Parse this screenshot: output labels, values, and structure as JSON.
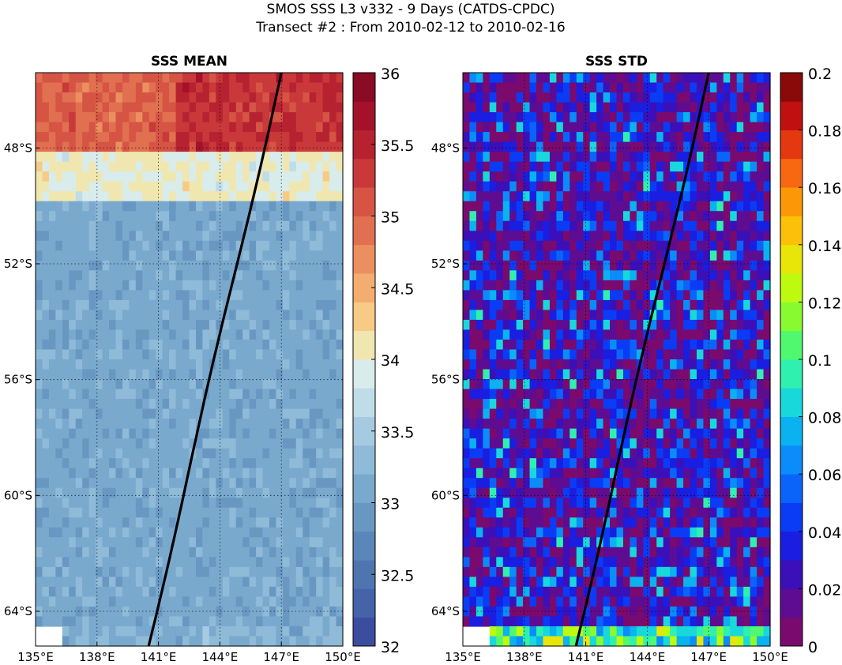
{
  "title_line1": "SMOS SSS L3 v332 - 9 Days (CATDS-CPDC)",
  "title_line2": "Transect #2 : From 2010-02-12 to 2010-02-16",
  "chart_data": [
    {
      "type": "heatmap",
      "title": "SSS MEAN",
      "x_ticks": [
        "135°E",
        "138°E",
        "141°E",
        "144°E",
        "147°E",
        "150°E"
      ],
      "x_tick_values": [
        135,
        138,
        141,
        144,
        147,
        150
      ],
      "y_ticks": [
        "48°S",
        "52°S",
        "56°S",
        "60°S",
        "64°S"
      ],
      "y_tick_values": [
        -48,
        -52,
        -56,
        -60,
        -64
      ],
      "xlim": [
        135,
        150
      ],
      "ylim": [
        -65.2,
        -45.4
      ],
      "grid": true,
      "colorbar": {
        "ticks": [
          "32",
          "32.5",
          "33",
          "33.5",
          "34",
          "34.5",
          "35",
          "35.5",
          "36"
        ],
        "range": [
          32,
          36
        ],
        "levels": 20,
        "colormap": "RdYlBu_r",
        "colors": [
          "#3b4d9e",
          "#4563a8",
          "#4f75b1",
          "#5b86ba",
          "#6898c2",
          "#79a9cd",
          "#8fbad8",
          "#a6cbe1",
          "#bfdde8",
          "#d8ecec",
          "#f0e6b0",
          "#f7cb86",
          "#f4ad70",
          "#ec8f5f",
          "#e07050",
          "#d65444",
          "#c9393a",
          "#b72231",
          "#a3122a",
          "#8a0b24"
        ]
      },
      "band_means_north_to_south": [
        {
          "lat_from": -45.4,
          "lat_to": -48.2,
          "sss": 35.0
        },
        {
          "lat_from": -48.2,
          "lat_to": -50.0,
          "sss": 34.0
        },
        {
          "lat_from": -50.0,
          "lat_to": -64.5,
          "sss": 33.1
        },
        {
          "lat_from": -64.5,
          "lat_to": -65.2,
          "sss": 33.2
        }
      ],
      "transect_line": {
        "lon": [
          147.0,
          140.5
        ],
        "lat": [
          -45.4,
          -65.2
        ],
        "color": "#000000"
      }
    },
    {
      "type": "heatmap",
      "title": "SSS STD",
      "x_ticks": [
        "135°E",
        "138°E",
        "141°E",
        "144°E",
        "147°E",
        "150°E"
      ],
      "x_tick_values": [
        135,
        138,
        141,
        144,
        147,
        150
      ],
      "y_ticks": [
        "48°S",
        "52°S",
        "56°S",
        "60°S",
        "64°S"
      ],
      "y_tick_values": [
        -48,
        -52,
        -56,
        -60,
        -64
      ],
      "xlim": [
        135,
        150
      ],
      "ylim": [
        -65.2,
        -45.4
      ],
      "grid": true,
      "colorbar": {
        "ticks": [
          "0",
          "0.02",
          "0.04",
          "0.06",
          "0.08",
          "0.1",
          "0.12",
          "0.14",
          "0.16",
          "0.18",
          "0.2"
        ],
        "range": [
          0,
          0.2
        ],
        "levels": 20,
        "colormap": "jet-like",
        "colors": [
          "#7a0a6e",
          "#5e0c92",
          "#3c10b8",
          "#1a1ee0",
          "#0a3cf5",
          "#0a64fa",
          "#0a8cfa",
          "#0ab2f0",
          "#18d8dc",
          "#30f0b0",
          "#50f870",
          "#88fa30",
          "#bdfa10",
          "#e8e608",
          "#fcc008",
          "#fc9808",
          "#f86810",
          "#e43810",
          "#c01010",
          "#8a0a0a"
        ]
      },
      "band_means_north_to_south": [
        {
          "lat_from": -45.4,
          "lat_to": -64.5,
          "sss_std": 0.03
        },
        {
          "lat_from": -64.5,
          "lat_to": -65.2,
          "sss_std": 0.06
        }
      ],
      "transect_line": {
        "lon": [
          147.0,
          140.5
        ],
        "lat": [
          -45.4,
          -65.2
        ],
        "color": "#000000"
      }
    }
  ]
}
